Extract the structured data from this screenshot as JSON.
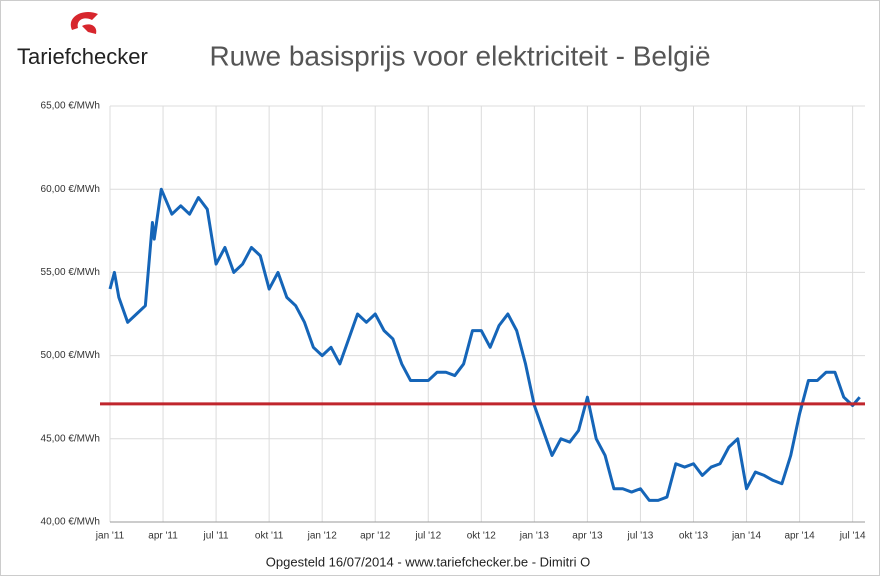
{
  "brand": "Tariefchecker",
  "footer": "Opgesteld 16/07/2014 - www.tariefchecker.be - Dimitri O",
  "chart_data": {
    "type": "line",
    "title": "Ruwe basisprijs voor elektriciteit - België",
    "x": [
      0,
      0.25,
      0.5,
      1,
      1.5,
      2,
      2.4,
      2.5,
      2.9,
      3.5,
      4,
      4.5,
      5,
      5.5,
      6,
      6.5,
      7,
      7.5,
      8,
      8.5,
      9,
      9.5,
      10,
      10.5,
      11,
      11.5,
      12,
      12.5,
      13,
      13.5,
      14,
      14.5,
      15,
      15.5,
      16,
      16.5,
      17,
      17.5,
      18,
      18.5,
      19,
      19.5,
      20,
      20.5,
      21,
      21.5,
      22,
      22.5,
      23,
      23.5,
      24,
      24.5,
      25,
      25.5,
      26,
      26.5,
      27,
      27.5,
      28,
      28.5,
      29,
      29.5,
      30,
      30.5,
      31,
      31.5,
      32,
      32.5,
      33,
      33.5,
      34,
      34.5,
      35,
      35.5,
      36,
      36.5,
      37,
      37.5,
      38,
      38.5,
      39,
      39.5,
      40,
      40.5,
      41,
      41.5,
      42,
      42.4
    ],
    "series": [
      {
        "name": "Ruwe basisprijs",
        "color": "#1565b8",
        "values": [
          54,
          55,
          53.5,
          52,
          52.5,
          53,
          58,
          57,
          60,
          58.5,
          59,
          58.5,
          59.5,
          58.8,
          55.5,
          56.5,
          55,
          55.5,
          56.5,
          56,
          54,
          55,
          53.5,
          53,
          52,
          50.5,
          50,
          50.5,
          49.5,
          51,
          52.5,
          52,
          52.5,
          51.5,
          51,
          49.5,
          48.5,
          48.5,
          48.5,
          49,
          49,
          48.8,
          49.5,
          51.5,
          51.5,
          50.5,
          51.8,
          52.5,
          51.5,
          49.5,
          47,
          45.5,
          44,
          45,
          44.8,
          45.5,
          47.5,
          45,
          44,
          42,
          42,
          41.8,
          42,
          41.3,
          41.3,
          41.5,
          43.5,
          43.3,
          43.5,
          42.8,
          43.3,
          43.5,
          44.5,
          45,
          42,
          43,
          42.8,
          42.5,
          42.3,
          44,
          46.5,
          48.5,
          48.5,
          49,
          49,
          47.5,
          47,
          47.5
        ]
      }
    ],
    "reference_line": {
      "value": 47.1,
      "color": "#c0262d"
    },
    "xlim": [
      0,
      42.7
    ],
    "xticks": [
      {
        "value": 0,
        "label": "jan '11"
      },
      {
        "value": 3,
        "label": "apr '11"
      },
      {
        "value": 6,
        "label": "jul '11"
      },
      {
        "value": 9,
        "label": "okt '11"
      },
      {
        "value": 12,
        "label": "jan '12"
      },
      {
        "value": 15,
        "label": "apr '12"
      },
      {
        "value": 18,
        "label": "jul '12"
      },
      {
        "value": 21,
        "label": "okt '12"
      },
      {
        "value": 24,
        "label": "jan '13"
      },
      {
        "value": 27,
        "label": "apr '13"
      },
      {
        "value": 30,
        "label": "jul '13"
      },
      {
        "value": 33,
        "label": "okt '13"
      },
      {
        "value": 36,
        "label": "jan '14"
      },
      {
        "value": 39,
        "label": "apr '14"
      },
      {
        "value": 42,
        "label": "jul '14"
      }
    ],
    "ylim": [
      40,
      65
    ],
    "yticks": [
      {
        "value": 40,
        "label": "40,00 €/MWh"
      },
      {
        "value": 45,
        "label": "45,00 €/MWh"
      },
      {
        "value": 50,
        "label": "50,00 €/MWh"
      },
      {
        "value": 55,
        "label": "55,00 €/MWh"
      },
      {
        "value": 60,
        "label": "60,00 €/MWh"
      },
      {
        "value": 65,
        "label": "65,00 €/MWh"
      }
    ],
    "grid": true
  }
}
